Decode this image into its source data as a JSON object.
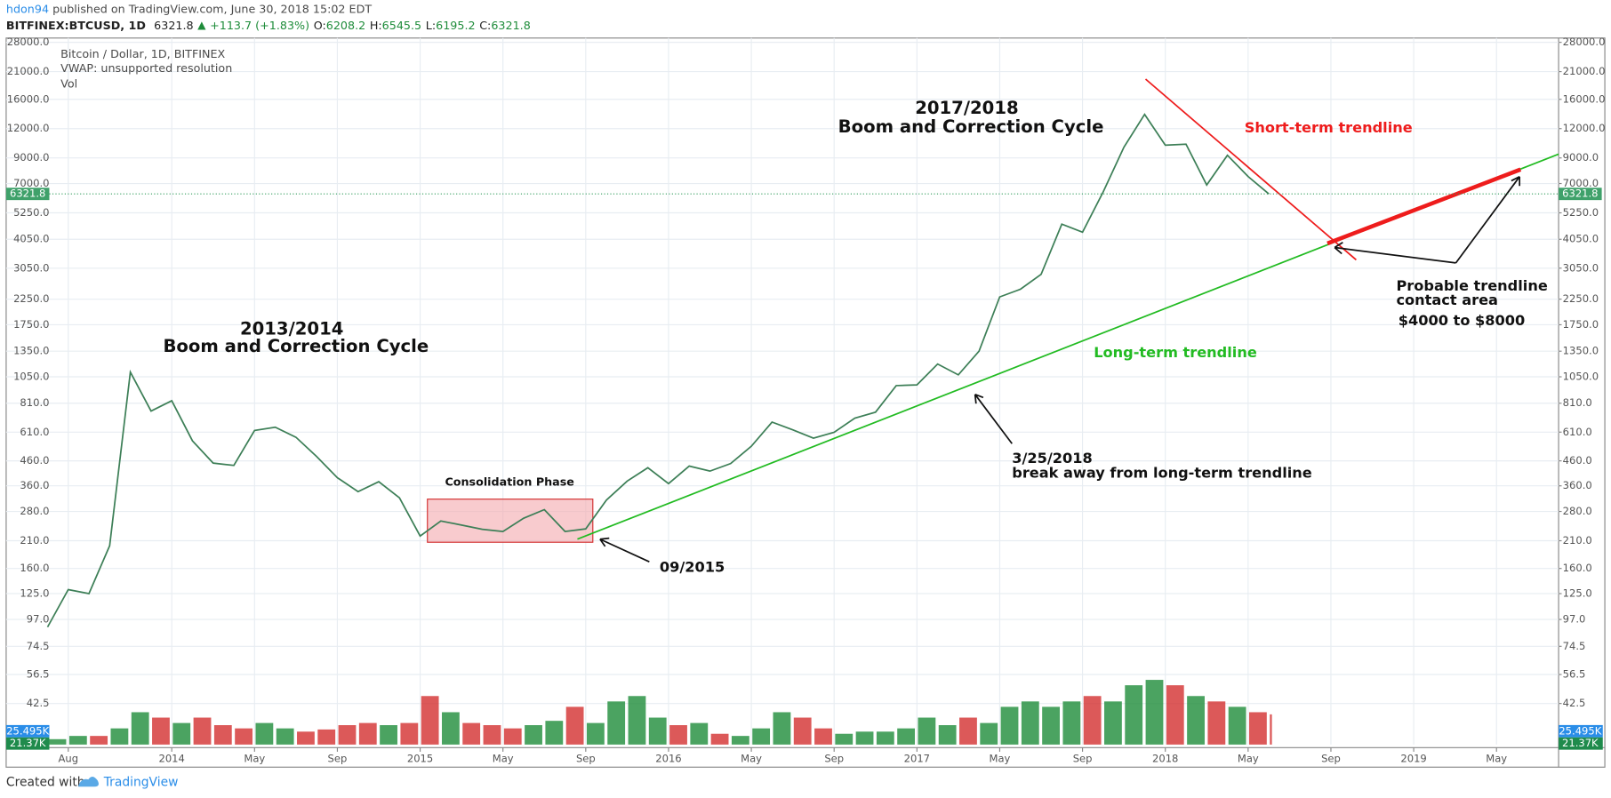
{
  "header": {
    "author": "hdon94",
    "published": "published on TradingView.com, June 30, 2018 15:02 EDT",
    "symbol": "BITFINEX:BTCUSD, 1D",
    "change": "+113.7 (+1.83%)",
    "ohlc": [
      {
        "label": "O:",
        "value": 6208.2
      },
      {
        "label": "H:",
        "value": 6545.5
      },
      {
        "label": "L:",
        "value": 6195.2
      },
      {
        "label": "C:",
        "value": 6321.8
      }
    ]
  },
  "chart_data": {
    "type": "line",
    "title": "Bitcoin / Dollar, 1D, BITFINEX",
    "indicators": [
      "VWAP: unsupported resolution",
      "Vol"
    ],
    "log_scale": true,
    "grid": true,
    "color": "#3d7f57",
    "up_color": "#1e8c3a",
    "down_color": "#d32f2f",
    "last_price": 6321.8,
    "volume_labels": [
      "25.495K",
      "21.37K"
    ],
    "x": [
      "2013-07",
      "2013-08",
      "2013-09",
      "2013-10",
      "2013-11",
      "2013-12",
      "2014-01",
      "2014-02",
      "2014-03",
      "2014-04",
      "2014-05",
      "2014-06",
      "2014-07",
      "2014-08",
      "2014-09",
      "2014-10",
      "2014-11",
      "2014-12",
      "2015-01",
      "2015-02",
      "2015-03",
      "2015-04",
      "2015-05",
      "2015-06",
      "2015-07",
      "2015-08",
      "2015-09",
      "2015-10",
      "2015-11",
      "2015-12",
      "2016-01",
      "2016-02",
      "2016-03",
      "2016-04",
      "2016-05",
      "2016-06",
      "2016-07",
      "2016-08",
      "2016-09",
      "2016-10",
      "2016-11",
      "2016-12",
      "2017-01",
      "2017-02",
      "2017-03",
      "2017-04",
      "2017-05",
      "2017-06",
      "2017-07",
      "2017-08",
      "2017-09",
      "2017-10",
      "2017-11",
      "2017-12",
      "2018-01",
      "2018-02",
      "2018-03",
      "2018-04",
      "2018-05",
      "2018-06"
    ],
    "values": [
      90,
      130,
      125,
      200,
      1100,
      750,
      830,
      560,
      450,
      440,
      620,
      640,
      580,
      480,
      390,
      340,
      375,
      320,
      220,
      255,
      245,
      235,
      230,
      262,
      285,
      230,
      236,
      313,
      377,
      430,
      368,
      437,
      416,
      448,
      531,
      673,
      624,
      575,
      609,
      700,
      742,
      963,
      970,
      1190,
      1070,
      1350,
      2300,
      2480,
      2870,
      4700,
      4340,
      6450,
      10000,
      13800,
      10200,
      10300,
      6900,
      9240,
      7500,
      6321.8
    ],
    "volume": [
      5,
      8,
      8,
      15,
      30,
      25,
      20,
      25,
      18,
      15,
      20,
      15,
      12,
      14,
      18,
      20,
      18,
      20,
      45,
      30,
      20,
      18,
      15,
      18,
      22,
      35,
      20,
      40,
      45,
      25,
      18,
      20,
      10,
      8,
      15,
      30,
      25,
      15,
      10,
      12,
      12,
      15,
      25,
      18,
      25,
      20,
      35,
      40,
      35,
      40,
      45,
      40,
      55,
      60,
      55,
      45,
      40,
      35,
      30,
      28
    ],
    "vlim": [
      0,
      160
    ],
    "xlim": [
      "2013-05",
      "2019-08"
    ],
    "xticks": [
      {
        "value": "2013-08",
        "label": "Aug"
      },
      {
        "value": "2014-01",
        "label": "2014"
      },
      {
        "value": "2014-05",
        "label": "May"
      },
      {
        "value": "2014-09",
        "label": "Sep"
      },
      {
        "value": "2015-01",
        "label": "2015"
      },
      {
        "value": "2015-05",
        "label": "May"
      },
      {
        "value": "2015-09",
        "label": "Sep"
      },
      {
        "value": "2016-01",
        "label": "2016"
      },
      {
        "value": "2016-05",
        "label": "May"
      },
      {
        "value": "2016-09",
        "label": "Sep"
      },
      {
        "value": "2017-01",
        "label": "2017"
      },
      {
        "value": "2017-05",
        "label": "May"
      },
      {
        "value": "2017-09",
        "label": "Sep"
      },
      {
        "value": "2018-01",
        "label": "2018"
      },
      {
        "value": "2018-05",
        "label": "May"
      },
      {
        "value": "2018-09",
        "label": "Sep"
      },
      {
        "value": "2019-01",
        "label": "2019"
      },
      {
        "value": "2019-05",
        "label": "May"
      }
    ],
    "ylim": [
      28.4,
      29200
    ],
    "yticks": [
      {
        "value": 28000,
        "label": "28000.0"
      },
      {
        "value": 21000,
        "label": "21000.0"
      },
      {
        "value": 16000,
        "label": "16000.0"
      },
      {
        "value": 12000,
        "label": "12000.0"
      },
      {
        "value": 9000,
        "label": "9000.0"
      },
      {
        "value": 7000,
        "label": "7000.0"
      },
      {
        "value": 5250,
        "label": "5250.0"
      },
      {
        "value": 4050,
        "label": "4050.0"
      },
      {
        "value": 3050,
        "label": "3050.0"
      },
      {
        "value": 2250,
        "label": "2250.0"
      },
      {
        "value": 1750,
        "label": "1750.0"
      },
      {
        "value": 1350,
        "label": "1350.0"
      },
      {
        "value": 1050,
        "label": "1050.0"
      },
      {
        "value": 810,
        "label": "810.0"
      },
      {
        "value": 610,
        "label": "610.0"
      },
      {
        "value": 460,
        "label": "460.0"
      },
      {
        "value": 360,
        "label": "360.0"
      },
      {
        "value": 280,
        "label": "280.0"
      },
      {
        "value": 210,
        "label": "210.0"
      },
      {
        "value": 160,
        "label": "160.0"
      },
      {
        "value": 125,
        "label": "125.0"
      },
      {
        "value": 97,
        "label": "97.0"
      },
      74.5,
      56.5,
      42.5
    ],
    "annotations": {
      "cycle_2017": [
        "2017/2018",
        "Boom and Correction Cycle"
      ],
      "cycle_2013": [
        "2013/2014",
        "Boom and Correction Cycle"
      ],
      "short_term": "Short-term trendline",
      "long_term": "Long-term trendline",
      "consolidation": "Consolidation Phase",
      "date_2015": "09/2015",
      "break": [
        "3/25/2018",
        "break away from long-term trendline"
      ],
      "contact": [
        "Probable trendline",
        "contact area",
        "$4000 to $8000"
      ]
    }
  },
  "footer": {
    "created": "Created with",
    "brand": "TradingView"
  }
}
